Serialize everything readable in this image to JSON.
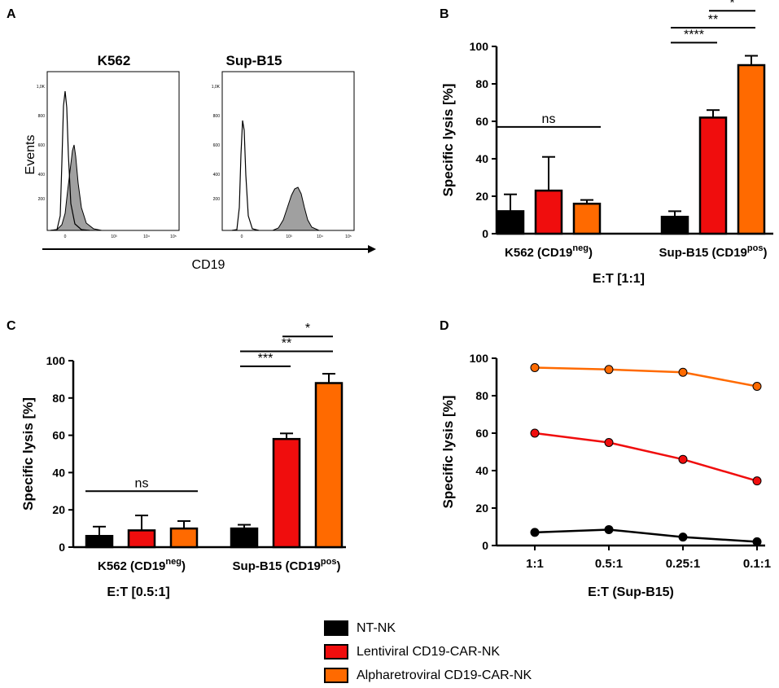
{
  "colors": {
    "nt": "#000000",
    "lenti": "#f00d0d",
    "alpha": "#ff6a00",
    "histFill": "#a0a0a0"
  },
  "legend": [
    {
      "label": "NT-NK",
      "color": "#000000"
    },
    {
      "label": "Lentiviral CD19-CAR-NK",
      "color": "#f00d0d"
    },
    {
      "label": "Alpharetroviral CD19-CAR-NK",
      "color": "#ff6a00"
    }
  ],
  "panelA": {
    "letter": "A",
    "ylabel": "Events",
    "xlabel": "CD19",
    "titles": [
      "K562",
      "Sup-B15"
    ],
    "yticks": [
      "1,0K",
      "800",
      "600",
      "400",
      "200"
    ],
    "xticks": [
      "0",
      "10³",
      "10⁴",
      "10⁵"
    ]
  },
  "chart_data": [
    {
      "panel": "B",
      "type": "bar",
      "groups": [
        {
          "name": "K562",
          "sup": "neg"
        },
        {
          "name": "Sup-B15",
          "sup": "pos"
        }
      ],
      "series": [
        {
          "name": "NT-NK",
          "values": [
            12,
            9
          ],
          "errors": [
            9,
            3
          ]
        },
        {
          "name": "Lentiviral CD19-CAR-NK",
          "values": [
            23,
            62
          ],
          "errors": [
            18,
            4
          ]
        },
        {
          "name": "Alpharetroviral CD19-CAR-NK",
          "values": [
            16,
            90
          ],
          "errors": [
            2,
            5
          ]
        }
      ],
      "ylabel": "Specific lysis [%]",
      "xlabel": "E:T [1:1]",
      "ylim": [
        0,
        100
      ],
      "yticks": [
        0,
        20,
        40,
        60,
        80,
        100
      ],
      "significance": [
        {
          "label": "ns",
          "group": 0,
          "from": 0,
          "to": 2,
          "level": 57
        },
        {
          "label": "****",
          "group": 1,
          "from": 0,
          "to": 1,
          "level": 102
        },
        {
          "label": "**",
          "group": 1,
          "from": 0,
          "to": 2,
          "level": 110
        },
        {
          "label": "*",
          "group": 1,
          "from": 1,
          "to": 2,
          "level": 119
        }
      ]
    },
    {
      "panel": "C",
      "type": "bar",
      "groups": [
        {
          "name": "K562",
          "sup": "neg"
        },
        {
          "name": "Sup-B15",
          "sup": "pos"
        }
      ],
      "series": [
        {
          "name": "NT-NK",
          "values": [
            6,
            10
          ],
          "errors": [
            5,
            2
          ]
        },
        {
          "name": "Lentiviral CD19-CAR-NK",
          "values": [
            9,
            58
          ],
          "errors": [
            8,
            3
          ]
        },
        {
          "name": "Alpharetroviral CD19-CAR-NK",
          "values": [
            10,
            88
          ],
          "errors": [
            4,
            5
          ]
        }
      ],
      "ylabel": "Specific lysis [%]",
      "xlabel": "E:T [0.5:1]",
      "ylim": [
        0,
        100
      ],
      "yticks": [
        0,
        20,
        40,
        60,
        80,
        100
      ],
      "significance": [
        {
          "label": "ns",
          "group": 0,
          "from": 0,
          "to": 2,
          "level": 30
        },
        {
          "label": "***",
          "group": 1,
          "from": 0,
          "to": 1,
          "level": 97
        },
        {
          "label": "**",
          "group": 1,
          "from": 0,
          "to": 2,
          "level": 105
        },
        {
          "label": "*",
          "group": 1,
          "from": 1,
          "to": 2,
          "level": 113
        }
      ]
    },
    {
      "panel": "D",
      "type": "line",
      "categories": [
        "1:1",
        "0.5:1",
        "0.25:1",
        "0.1:1"
      ],
      "series": [
        {
          "name": "NT-NK",
          "values": [
            7,
            8.5,
            4.5,
            2
          ]
        },
        {
          "name": "Lentiviral CD19-CAR-NK",
          "values": [
            60,
            55,
            46,
            34.5
          ]
        },
        {
          "name": "Alpharetroviral CD19-CAR-NK",
          "values": [
            95,
            94,
            92.5,
            85
          ]
        }
      ],
      "ylabel": "Specific lysis [%]",
      "xlabel": "E:T (Sup-B15)",
      "ylim": [
        0,
        100
      ],
      "yticks": [
        0,
        20,
        40,
        60,
        80,
        100
      ]
    }
  ]
}
